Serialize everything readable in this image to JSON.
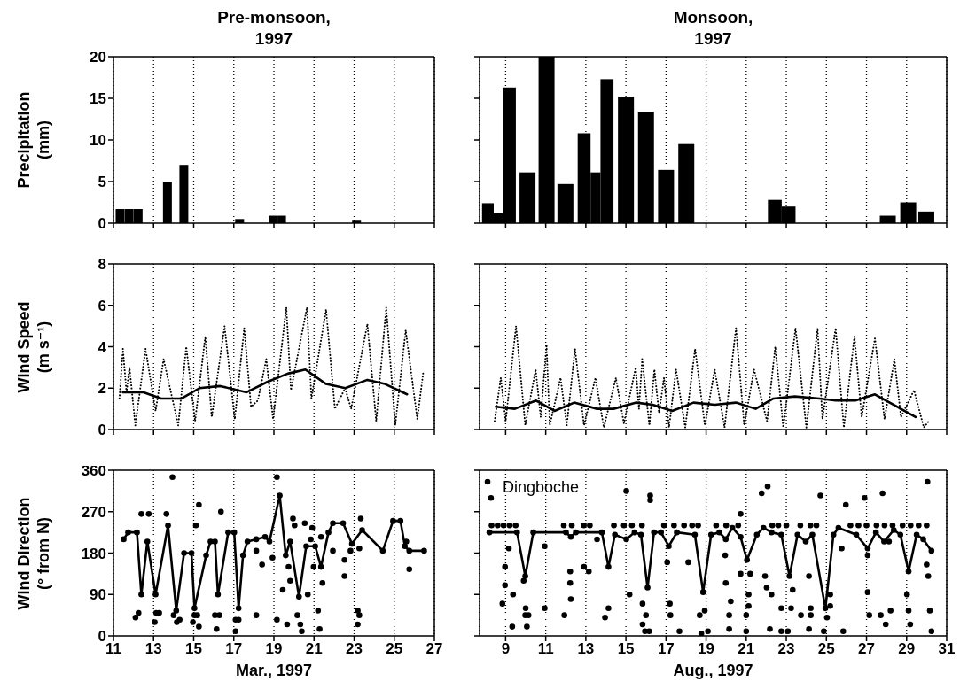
{
  "chart_data": [
    {
      "type": "bar",
      "title": "Pre-monsoon,\n1997",
      "ylabel": "Precipitation\n(mm)",
      "x": [
        11.35,
        11.8,
        12.25,
        13.71,
        14.53,
        17.31,
        19.0,
        19.4,
        23.14
      ],
      "values": [
        1.7,
        1.7,
        1.7,
        5.0,
        7.0,
        0.5,
        0.9,
        0.9,
        0.4
      ],
      "color": "#000000",
      "xlim": [
        11,
        27
      ],
      "xticks": [
        11,
        13,
        15,
        17,
        19,
        21,
        23,
        25,
        27
      ],
      "ylim": [
        0,
        20
      ],
      "yticks": [
        0,
        5,
        10,
        15,
        20
      ],
      "grid": "x",
      "tick_labels": "y"
    },
    {
      "type": "bar",
      "title": "Monsoon,\n1997",
      "x": [
        8.24,
        8.61,
        9.13,
        10.11,
        11.06,
        12.0,
        13.01,
        13.5,
        14.0,
        15.02,
        16.02,
        17.02,
        18.03,
        22.5,
        23.08,
        28.08,
        29.1,
        30.0
      ],
      "values": [
        2.4,
        1.2,
        16.3,
        6.1,
        20,
        4.7,
        10.8,
        6.1,
        17.3,
        15.2,
        13.4,
        6.4,
        9.5,
        2.8,
        2.0,
        0.9,
        2.5,
        1.4
      ],
      "color": "#000000",
      "xlim": [
        7.7,
        31
      ],
      "xticks": [
        9,
        11,
        13,
        15,
        17,
        19,
        21,
        23,
        25,
        27,
        29,
        31
      ],
      "ylim": [
        0,
        20
      ],
      "yticks": [
        0,
        5,
        10,
        15,
        20
      ],
      "grid": "x",
      "tick_labels": false
    },
    {
      "type": "line",
      "ylabel": "Wind Speed\n(m s⁻¹)",
      "series": [
        {
          "color": "#000000",
          "line_style": "dotted",
          "marker": "none",
          "x": [
            11.3,
            11.47,
            11.65,
            11.8,
            12.09,
            12.6,
            13.1,
            13.5,
            14.23,
            14.63,
            15.07,
            15.58,
            15.9,
            16.54,
            17.05,
            17.52,
            17.86,
            18.2,
            18.62,
            18.96,
            19.62,
            19.85,
            20.65,
            20.87,
            21.6,
            22.04,
            22.55,
            22.85,
            23.66,
            24.1,
            24.6,
            25.05,
            25.57,
            26.15,
            26.45
          ],
          "values": [
            1.5,
            3.9,
            1.8,
            3.0,
            0.2,
            3.9,
            0.9,
            3.4,
            0.2,
            4.0,
            0.4,
            4.5,
            0.6,
            5.0,
            0.5,
            4.9,
            1.1,
            1.4,
            3.4,
            0.5,
            5.9,
            1.9,
            5.9,
            1.5,
            5.8,
            1.0,
            2.0,
            1.0,
            5.1,
            0.4,
            5.9,
            0.2,
            4.8,
            0.5,
            2.8
          ]
        },
        {
          "color": "#000000",
          "line_style": "solid",
          "marker": "none",
          "x": [
            11.47,
            12.5,
            13.38,
            14.4,
            15.29,
            16.32,
            17.64,
            18.67,
            19.69,
            20.57,
            21.6,
            22.56,
            23.66,
            24.54,
            25.64
          ],
          "values": [
            1.8,
            1.8,
            1.5,
            1.5,
            2.0,
            2.1,
            1.8,
            2.3,
            2.7,
            2.9,
            2.2,
            2.0,
            2.4,
            2.2,
            1.7
          ]
        }
      ],
      "xlim": [
        11,
        27
      ],
      "xticks": [
        11,
        13,
        15,
        17,
        19,
        21,
        23,
        25,
        27
      ],
      "ylim": [
        0,
        8
      ],
      "yticks": [
        0,
        2,
        4,
        6,
        8
      ],
      "grid": "x",
      "tick_labels": "y"
    },
    {
      "type": "line",
      "series": [
        {
          "color": "#000000",
          "line_style": "dotted",
          "marker": "none",
          "x": [
            8.45,
            8.76,
            9.0,
            9.52,
            9.98,
            10.5,
            10.75,
            11.04,
            11.2,
            11.74,
            12.05,
            12.46,
            12.91,
            13.48,
            13.9,
            14.5,
            14.9,
            15.49,
            15.65,
            15.81,
            16.17,
            16.42,
            16.65,
            16.9,
            17.15,
            17.5,
            17.96,
            18.45,
            18.94,
            19.43,
            19.92,
            20.49,
            20.9,
            21.39,
            22.04,
            22.45,
            22.85,
            23.46,
            24.0,
            24.56,
            24.8,
            25.46,
            25.87,
            26.4,
            26.76,
            27.42,
            27.9,
            28.39,
            28.72,
            29.37,
            29.86,
            30.1
          ],
          "values": [
            0.4,
            2.5,
            0.4,
            5.0,
            0.2,
            2.9,
            0.6,
            4.1,
            0.2,
            2.5,
            0.2,
            3.9,
            0.2,
            2.5,
            0.1,
            2.5,
            0.3,
            3.0,
            1.0,
            3.4,
            0.2,
            2.9,
            0.8,
            2.5,
            0.1,
            2.9,
            0.1,
            3.9,
            0.2,
            2.9,
            0.1,
            4.9,
            0.2,
            2.9,
            0.4,
            4.0,
            0.1,
            4.9,
            0.1,
            4.9,
            0.5,
            4.9,
            0.1,
            4.5,
            0.6,
            4.4,
            0.5,
            3.4,
            0.6,
            1.9,
            0.1,
            0.4
          ]
        },
        {
          "color": "#000000",
          "line_style": "solid",
          "marker": "none",
          "x": [
            8.51,
            9.46,
            10.52,
            11.44,
            12.42,
            13.56,
            14.38,
            15.52,
            16.33,
            17.31,
            18.37,
            19.43,
            20.49,
            21.47,
            22.36,
            23.42,
            24.65,
            25.46,
            26.44,
            27.42,
            29.45
          ],
          "values": [
            1.1,
            1.0,
            1.4,
            0.9,
            1.3,
            1.0,
            1.0,
            1.3,
            1.2,
            0.9,
            1.3,
            1.2,
            1.3,
            1.0,
            1.5,
            1.6,
            1.5,
            1.4,
            1.4,
            1.7,
            0.6
          ]
        }
      ],
      "xlim": [
        7.7,
        31
      ],
      "xticks": [
        9,
        11,
        13,
        15,
        17,
        19,
        21,
        23,
        25,
        27,
        29,
        31
      ],
      "ylim": [
        0,
        8
      ],
      "yticks": [
        0,
        2,
        4,
        6,
        8
      ],
      "grid": "x",
      "tick_labels": false
    },
    {
      "type": "scatter",
      "ylabel": "Wind Direction\n(° from N)",
      "xlabel": "Mar., 1997",
      "series": [
        {
          "color": "#000000",
          "marker": "circle",
          "x": [
            12.1,
            12.25,
            12.39,
            12.76,
            13.06,
            13.13,
            13.28,
            13.64,
            13.94,
            14.0,
            14.16,
            14.3,
            14.96,
            15.04,
            15.11,
            15.18,
            15.26,
            15.26,
            16.06,
            16.14,
            16.28,
            16.36,
            17.09,
            17.09,
            17.24,
            18.12,
            18.12,
            18.41,
            18.93,
            19.15,
            19.15,
            19.44,
            19.66,
            19.73,
            19.81,
            19.95,
            20.03,
            20.17,
            20.32,
            20.39,
            20.54,
            20.69,
            20.84,
            20.91,
            20.98,
            21.2,
            21.28,
            21.35,
            21.42,
            21.94,
            22.52,
            22.52,
            22.82,
            23.18,
            23.18,
            23.26,
            23.26,
            23.33,
            25.6,
            25.75
          ],
          "values": [
            40,
            50,
            265,
            265,
            30,
            50,
            50,
            265,
            345,
            45,
            30,
            35,
            30,
            45,
            240,
            45,
            285,
            20,
            45,
            15,
            45,
            270,
            35,
            10,
            35,
            45,
            185,
            155,
            170,
            35,
            345,
            100,
            25,
            150,
            120,
            255,
            240,
            45,
            25,
            10,
            245,
            90,
            210,
            235,
            150,
            55,
            15,
            215,
            115,
            185,
            165,
            130,
            185,
            55,
            25,
            45,
            190,
            255,
            205,
            145
          ]
        },
        {
          "type": "line",
          "color": "#000000",
          "line_style": "solid",
          "marker": "circle",
          "x": [
            11.51,
            11.73,
            12.17,
            12.39,
            12.69,
            13.1,
            13.72,
            14.13,
            14.52,
            14.89,
            15.04,
            15.62,
            15.84,
            16.06,
            16.21,
            16.72,
            17.02,
            17.24,
            17.46,
            17.68,
            18.12,
            18.56,
            18.78,
            19.29,
            19.59,
            19.81,
            20.25,
            20.61,
            21.06,
            21.35,
            21.72,
            21.94,
            22.45,
            22.89,
            23.4,
            24.43,
            24.94,
            25.31,
            25.53,
            25.75,
            26.49
          ],
          "values": [
            210,
            225,
            225,
            90,
            205,
            90,
            240,
            55,
            180,
            180,
            60,
            175,
            205,
            205,
            90,
            225,
            225,
            60,
            175,
            205,
            210,
            215,
            205,
            305,
            175,
            205,
            85,
            195,
            195,
            150,
            225,
            245,
            245,
            200,
            230,
            185,
            250,
            250,
            195,
            185,
            185
          ]
        }
      ],
      "xlim": [
        11,
        27
      ],
      "xticks": [
        11,
        13,
        15,
        17,
        19,
        21,
        23,
        25,
        27
      ],
      "ylim": [
        0,
        360
      ],
      "yticks": [
        0,
        90,
        180,
        270,
        360
      ],
      "grid": "x"
    },
    {
      "type": "scatter",
      "xlabel": "Aug., 1997",
      "annotations": [
        "Dingboche"
      ],
      "series": [
        {
          "color": "#000000",
          "marker": "circle",
          "x": [
            8.1,
            8.27,
            8.84,
            8.97,
            8.97,
            9.16,
            9.33,
            9.37,
            9.9,
            9.98,
            10.0,
            10.06,
            10.14,
            10.95,
            10.95,
            11.93,
            12.22,
            12.22,
            12.25,
            12.91,
            13.15,
            13.56,
            13.96,
            14.13,
            15.02,
            15.18,
            15.83,
            15.83,
            15.95,
            16.0,
            16.16,
            16.21,
            16.21,
            17.06,
            17.19,
            17.22,
            17.67,
            18.11,
            18.68,
            18.76,
            18.93,
            19.09,
            19.95,
            19.98,
            20.15,
            20.15,
            20.23,
            20.72,
            20.72,
            21.0,
            21.0,
            21.12,
            21.12,
            21.2,
            21.77,
            21.94,
            22.02,
            22.07,
            22.18,
            22.26,
            22.75,
            22.75,
            23.08,
            23.24,
            23.32,
            23.73,
            24.13,
            24.13,
            24.22,
            24.22,
            24.7,
            24.87,
            25.03,
            25.19,
            25.19,
            25.76,
            25.84,
            25.97,
            26.9,
            27.06,
            27.06,
            27.14,
            27.71,
            27.8,
            27.96,
            28.12,
            28.2,
            29.02,
            29.1,
            29.18,
            30.0,
            30.04,
            30.08,
            30.16,
            30.24,
            8.3,
            8.6,
            8.9,
            9.2,
            9.5,
            11.9,
            12.3,
            12.9,
            13.2,
            14.4,
            14.9,
            15.3,
            15.8,
            16.9,
            17.4,
            17.9,
            18.3,
            18.6,
            19.5,
            20.0,
            20.6,
            22.3,
            22.6,
            23.0,
            23.7,
            24.2,
            24.5,
            26.2,
            26.6,
            27.0,
            27.5,
            27.9,
            28.3,
            28.8,
            29.2,
            29.6,
            30.0
          ],
          "values": [
            335,
            300,
            70,
            150,
            110,
            190,
            20,
            90,
            120,
            45,
            60,
            20,
            45,
            60,
            195,
            45,
            115,
            140,
            80,
            150,
            140,
            210,
            40,
            60,
            315,
            90,
            70,
            25,
            10,
            45,
            10,
            305,
            295,
            160,
            70,
            45,
            10,
            160,
            45,
            5,
            55,
            10,
            175,
            115,
            45,
            15,
            75,
            135,
            265,
            45,
            10,
            90,
            65,
            135,
            310,
            130,
            105,
            325,
            15,
            90,
            60,
            10,
            10,
            60,
            100,
            45,
            130,
            15,
            60,
            45,
            305,
            10,
            40,
            90,
            65,
            190,
            10,
            285,
            300,
            175,
            95,
            45,
            45,
            310,
            25,
            205,
            55,
            90,
            55,
            25,
            155,
            335,
            130,
            55,
            10,
            240,
            240,
            240,
            240,
            240,
            240,
            240,
            240,
            240,
            240,
            240,
            240,
            240,
            240,
            240,
            240,
            240,
            240,
            240,
            240,
            240,
            240,
            240,
            240,
            240,
            240,
            240,
            240,
            240,
            240,
            240,
            240,
            240,
            240,
            240,
            240,
            240
          ]
        },
        {
          "type": "line",
          "color": "#000000",
          "line_style": "solid",
          "marker": "circle",
          "x": [
            8.19,
            9.57,
            9.98,
            10.38,
            12.01,
            12.25,
            12.5,
            13.8,
            14.13,
            14.45,
            15.02,
            15.43,
            15.75,
            16.08,
            16.4,
            16.75,
            17.14,
            17.54,
            18.44,
            18.85,
            19.25,
            19.66,
            19.98,
            20.31,
            20.72,
            21.04,
            21.53,
            21.86,
            22.26,
            22.75,
            23.16,
            23.56,
            23.97,
            24.3,
            24.95,
            25.35,
            25.6,
            26.49,
            27.06,
            27.47,
            27.88,
            28.36,
            28.69,
            29.1,
            29.5,
            29.83,
            30.24
          ],
          "values": [
            225,
            225,
            130,
            225,
            225,
            215,
            225,
            225,
            150,
            220,
            210,
            225,
            220,
            105,
            225,
            225,
            195,
            225,
            220,
            95,
            220,
            225,
            210,
            235,
            215,
            165,
            220,
            235,
            225,
            220,
            130,
            220,
            205,
            220,
            60,
            220,
            235,
            220,
            190,
            225,
            205,
            230,
            220,
            140,
            220,
            210,
            185
          ]
        }
      ],
      "xlim": [
        7.7,
        31
      ],
      "xticks": [
        9,
        11,
        13,
        15,
        17,
        19,
        21,
        23,
        25,
        27,
        29,
        31
      ],
      "ylim": [
        0,
        360
      ],
      "yticks": [
        0,
        90,
        180,
        270,
        360
      ],
      "grid": "x",
      "tick_labels": "x"
    }
  ]
}
